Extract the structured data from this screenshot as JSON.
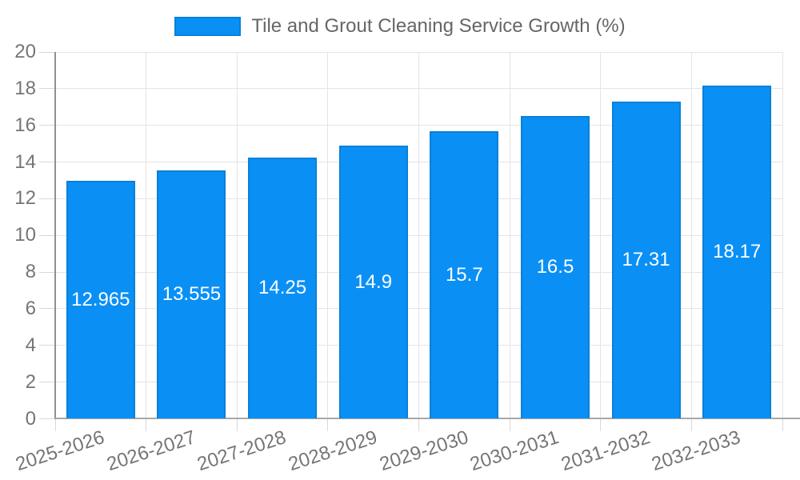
{
  "chart_data": {
    "type": "bar",
    "title": "Tile and Grout Cleaning Service Growth (%)",
    "series_name": "Tile and Grout Cleaning Service Growth (%)",
    "categories": [
      "2025-2026",
      "2026-2027",
      "2027-2028",
      "2028-2029",
      "2029-2030",
      "2030-2031",
      "2031-2032",
      "2032-2033"
    ],
    "values": [
      12.965,
      13.555,
      14.25,
      14.9,
      15.7,
      16.5,
      17.31,
      18.17
    ],
    "value_labels": [
      "12.965",
      "13.555",
      "14.25",
      "14.9",
      "15.7",
      "16.5",
      "17.31",
      "18.17"
    ],
    "xlabel": "",
    "ylabel": "",
    "ylim": [
      0,
      20
    ],
    "ytick_step": 2,
    "ytick_labels": [
      "0",
      "2",
      "4",
      "6",
      "8",
      "10",
      "12",
      "14",
      "16",
      "18",
      "20"
    ],
    "grid": true,
    "legend_position": "top-center",
    "bar_color": "#0a90f5",
    "bar_border_color": "#0880d8",
    "grid_color": "#e4e4e4",
    "tick_color": "#d8d8d8",
    "axis_text_color": "#757575",
    "value_label_color": "#ffffff"
  }
}
